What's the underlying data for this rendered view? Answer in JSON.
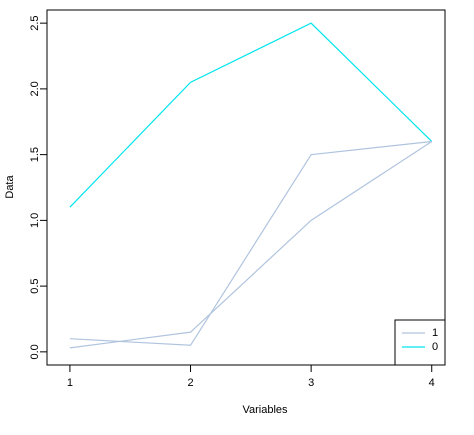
{
  "chart_data": {
    "type": "line",
    "x_label": "Variables",
    "y_label": "Data",
    "x": [
      1,
      2,
      3,
      4
    ],
    "series": [
      {
        "name": "0",
        "color": "#00e5ee",
        "values": [
          1.1,
          2.05,
          2.5,
          1.6
        ]
      },
      {
        "color": "#b0c4de",
        "values": [
          0.1,
          0.05,
          1.5,
          1.6
        ]
      },
      {
        "name": "1",
        "color": "#b0c4de",
        "values": [
          0.03,
          0.15,
          1.0,
          1.6
        ]
      }
    ],
    "legend": [
      {
        "label": "1",
        "color": "#b0c4de"
      },
      {
        "label": "0",
        "color": "#00e5ee"
      }
    ],
    "legend_position": "bottom-right",
    "xlim": [
      0.81,
      4.11
    ],
    "ylim": [
      -0.1,
      2.6
    ],
    "xticks": [
      1,
      2,
      3,
      4
    ],
    "yticks": [
      {
        "value": 0,
        "label": "0.0"
      },
      0.5,
      {
        "value": 1,
        "label": "1.0"
      },
      1.5,
      {
        "value": 2,
        "label": "2.0"
      },
      2.5
    ]
  }
}
